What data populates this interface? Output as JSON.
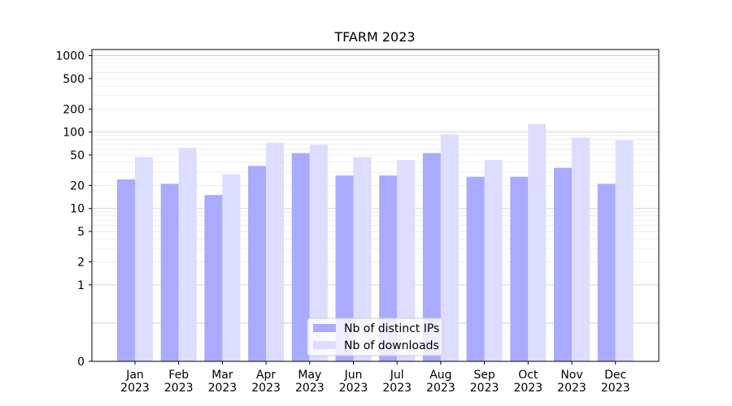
{
  "chart_data": {
    "type": "bar",
    "title": "TFARM 2023",
    "xlabel": "",
    "ylabel": "",
    "y_scale": "symlog",
    "ylim": [
      0,
      1200
    ],
    "y_ticks": [
      0,
      1,
      2,
      5,
      10,
      20,
      50,
      100,
      200,
      500,
      1000
    ],
    "grid": true,
    "legend_position": "bottom-center",
    "categories": [
      "Jan\n2023",
      "Feb\n2023",
      "Mar\n2023",
      "Apr\n2023",
      "May\n2023",
      "Jun\n2023",
      "Jul\n2023",
      "Aug\n2023",
      "Sep\n2023",
      "Oct\n2023",
      "Nov\n2023",
      "Dec\n2023"
    ],
    "series": [
      {
        "name": "Nb of distinct IPs",
        "color": "#aaaaff",
        "values": [
          24,
          21,
          15,
          36,
          53,
          27,
          27,
          53,
          26,
          26,
          34,
          21
        ]
      },
      {
        "name": "Nb of downloads",
        "color": "#ddddff",
        "values": [
          47,
          62,
          28,
          72,
          68,
          47,
          43,
          93,
          43,
          127,
          84,
          78
        ]
      }
    ]
  }
}
